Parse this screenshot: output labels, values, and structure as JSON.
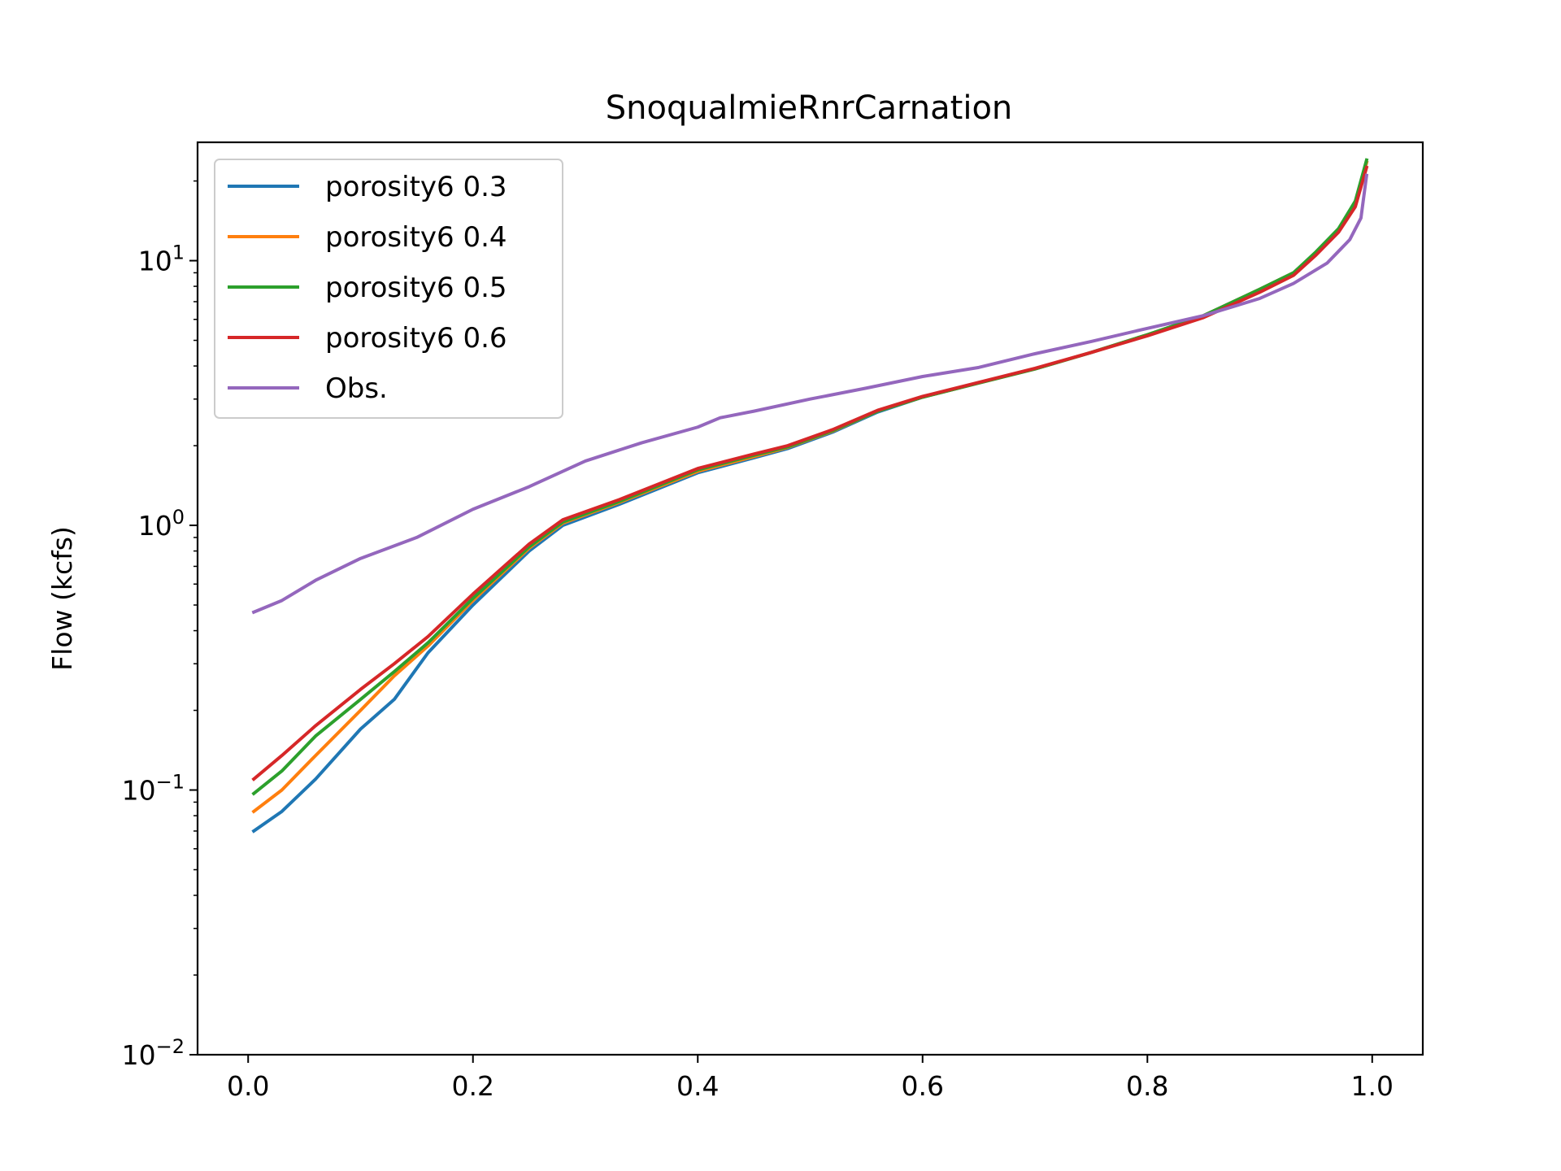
{
  "chart_data": {
    "type": "line",
    "title": "SnoqualmieRnrCarnation",
    "xlabel": "",
    "ylabel": "Flow (kcfs)",
    "xlim": [
      -0.045,
      1.045
    ],
    "ylim": [
      0.01,
      28
    ],
    "yscale": "log",
    "grid": false,
    "legend_position": "top-left",
    "x_ticks": [
      {
        "value": 0.0,
        "label": "0.0"
      },
      {
        "value": 0.2,
        "label": "0.2"
      },
      {
        "value": 0.4,
        "label": "0.4"
      },
      {
        "value": 0.6,
        "label": "0.6"
      },
      {
        "value": 0.8,
        "label": "0.8"
      },
      {
        "value": 1.0,
        "label": "1.0"
      }
    ],
    "y_ticks": [
      {
        "value": 0.01,
        "base": "10",
        "exp": "−2"
      },
      {
        "value": 0.1,
        "base": "10",
        "exp": "−1"
      },
      {
        "value": 1,
        "base": "10",
        "exp": "0"
      },
      {
        "value": 10,
        "base": "10",
        "exp": "1"
      }
    ],
    "series": [
      {
        "name": "porosity6 0.3",
        "color": "#1f77b4",
        "points": [
          [
            0.005,
            0.07
          ],
          [
            0.03,
            0.083
          ],
          [
            0.06,
            0.11
          ],
          [
            0.1,
            0.17
          ],
          [
            0.13,
            0.22
          ],
          [
            0.16,
            0.33
          ],
          [
            0.2,
            0.5
          ],
          [
            0.25,
            0.8
          ],
          [
            0.28,
            1.0
          ],
          [
            0.33,
            1.2
          ],
          [
            0.4,
            1.58
          ],
          [
            0.45,
            1.8
          ],
          [
            0.48,
            1.95
          ],
          [
            0.52,
            2.25
          ],
          [
            0.56,
            2.68
          ],
          [
            0.6,
            3.05
          ],
          [
            0.65,
            3.45
          ],
          [
            0.7,
            3.9
          ],
          [
            0.75,
            4.5
          ],
          [
            0.8,
            5.25
          ],
          [
            0.85,
            6.2
          ],
          [
            0.9,
            7.8
          ],
          [
            0.93,
            9.0
          ],
          [
            0.95,
            10.7
          ],
          [
            0.97,
            13.0
          ],
          [
            0.985,
            16.5
          ],
          [
            0.995,
            23.5
          ]
        ]
      },
      {
        "name": "porosity6 0.4",
        "color": "#ff7f0e",
        "points": [
          [
            0.005,
            0.083
          ],
          [
            0.03,
            0.1
          ],
          [
            0.06,
            0.135
          ],
          [
            0.1,
            0.2
          ],
          [
            0.13,
            0.27
          ],
          [
            0.16,
            0.35
          ],
          [
            0.2,
            0.52
          ],
          [
            0.25,
            0.82
          ],
          [
            0.28,
            1.02
          ],
          [
            0.33,
            1.22
          ],
          [
            0.4,
            1.6
          ],
          [
            0.45,
            1.82
          ],
          [
            0.48,
            1.97
          ],
          [
            0.52,
            2.27
          ],
          [
            0.56,
            2.7
          ],
          [
            0.6,
            3.05
          ],
          [
            0.65,
            3.45
          ],
          [
            0.7,
            3.9
          ],
          [
            0.75,
            4.5
          ],
          [
            0.8,
            5.25
          ],
          [
            0.85,
            6.2
          ],
          [
            0.9,
            7.8
          ],
          [
            0.93,
            9.0
          ],
          [
            0.95,
            10.7
          ],
          [
            0.97,
            13.0
          ],
          [
            0.985,
            16.5
          ],
          [
            0.995,
            23.5
          ]
        ]
      },
      {
        "name": "porosity6 0.5",
        "color": "#2ca02c",
        "points": [
          [
            0.005,
            0.097
          ],
          [
            0.03,
            0.118
          ],
          [
            0.06,
            0.16
          ],
          [
            0.1,
            0.22
          ],
          [
            0.13,
            0.28
          ],
          [
            0.16,
            0.36
          ],
          [
            0.2,
            0.53
          ],
          [
            0.25,
            0.83
          ],
          [
            0.28,
            1.03
          ],
          [
            0.33,
            1.23
          ],
          [
            0.4,
            1.62
          ],
          [
            0.45,
            1.84
          ],
          [
            0.48,
            1.98
          ],
          [
            0.52,
            2.28
          ],
          [
            0.56,
            2.7
          ],
          [
            0.6,
            3.05
          ],
          [
            0.65,
            3.45
          ],
          [
            0.7,
            3.9
          ],
          [
            0.75,
            4.5
          ],
          [
            0.8,
            5.25
          ],
          [
            0.85,
            6.2
          ],
          [
            0.9,
            7.8
          ],
          [
            0.93,
            9.0
          ],
          [
            0.95,
            10.8
          ],
          [
            0.97,
            13.2
          ],
          [
            0.985,
            16.8
          ],
          [
            0.995,
            24.0
          ]
        ]
      },
      {
        "name": "porosity6 0.6",
        "color": "#d62728",
        "points": [
          [
            0.005,
            0.11
          ],
          [
            0.03,
            0.135
          ],
          [
            0.06,
            0.175
          ],
          [
            0.1,
            0.24
          ],
          [
            0.13,
            0.3
          ],
          [
            0.16,
            0.38
          ],
          [
            0.2,
            0.55
          ],
          [
            0.25,
            0.85
          ],
          [
            0.28,
            1.05
          ],
          [
            0.33,
            1.25
          ],
          [
            0.4,
            1.64
          ],
          [
            0.45,
            1.86
          ],
          [
            0.48,
            2.0
          ],
          [
            0.52,
            2.3
          ],
          [
            0.56,
            2.72
          ],
          [
            0.6,
            3.07
          ],
          [
            0.65,
            3.47
          ],
          [
            0.7,
            3.92
          ],
          [
            0.75,
            4.5
          ],
          [
            0.8,
            5.2
          ],
          [
            0.85,
            6.1
          ],
          [
            0.9,
            7.6
          ],
          [
            0.93,
            8.8
          ],
          [
            0.95,
            10.5
          ],
          [
            0.97,
            12.8
          ],
          [
            0.985,
            16.0
          ],
          [
            0.995,
            22.5
          ]
        ]
      },
      {
        "name": "Obs.",
        "color": "#9467bd",
        "points": [
          [
            0.005,
            0.47
          ],
          [
            0.03,
            0.52
          ],
          [
            0.06,
            0.62
          ],
          [
            0.1,
            0.75
          ],
          [
            0.15,
            0.9
          ],
          [
            0.2,
            1.15
          ],
          [
            0.25,
            1.4
          ],
          [
            0.3,
            1.75
          ],
          [
            0.35,
            2.05
          ],
          [
            0.4,
            2.35
          ],
          [
            0.42,
            2.55
          ],
          [
            0.45,
            2.7
          ],
          [
            0.5,
            3.0
          ],
          [
            0.55,
            3.3
          ],
          [
            0.6,
            3.65
          ],
          [
            0.65,
            3.95
          ],
          [
            0.7,
            4.45
          ],
          [
            0.75,
            4.95
          ],
          [
            0.8,
            5.55
          ],
          [
            0.85,
            6.2
          ],
          [
            0.9,
            7.2
          ],
          [
            0.93,
            8.2
          ],
          [
            0.96,
            9.8
          ],
          [
            0.98,
            12.0
          ],
          [
            0.99,
            14.5
          ],
          [
            0.995,
            21.0
          ]
        ]
      }
    ]
  }
}
